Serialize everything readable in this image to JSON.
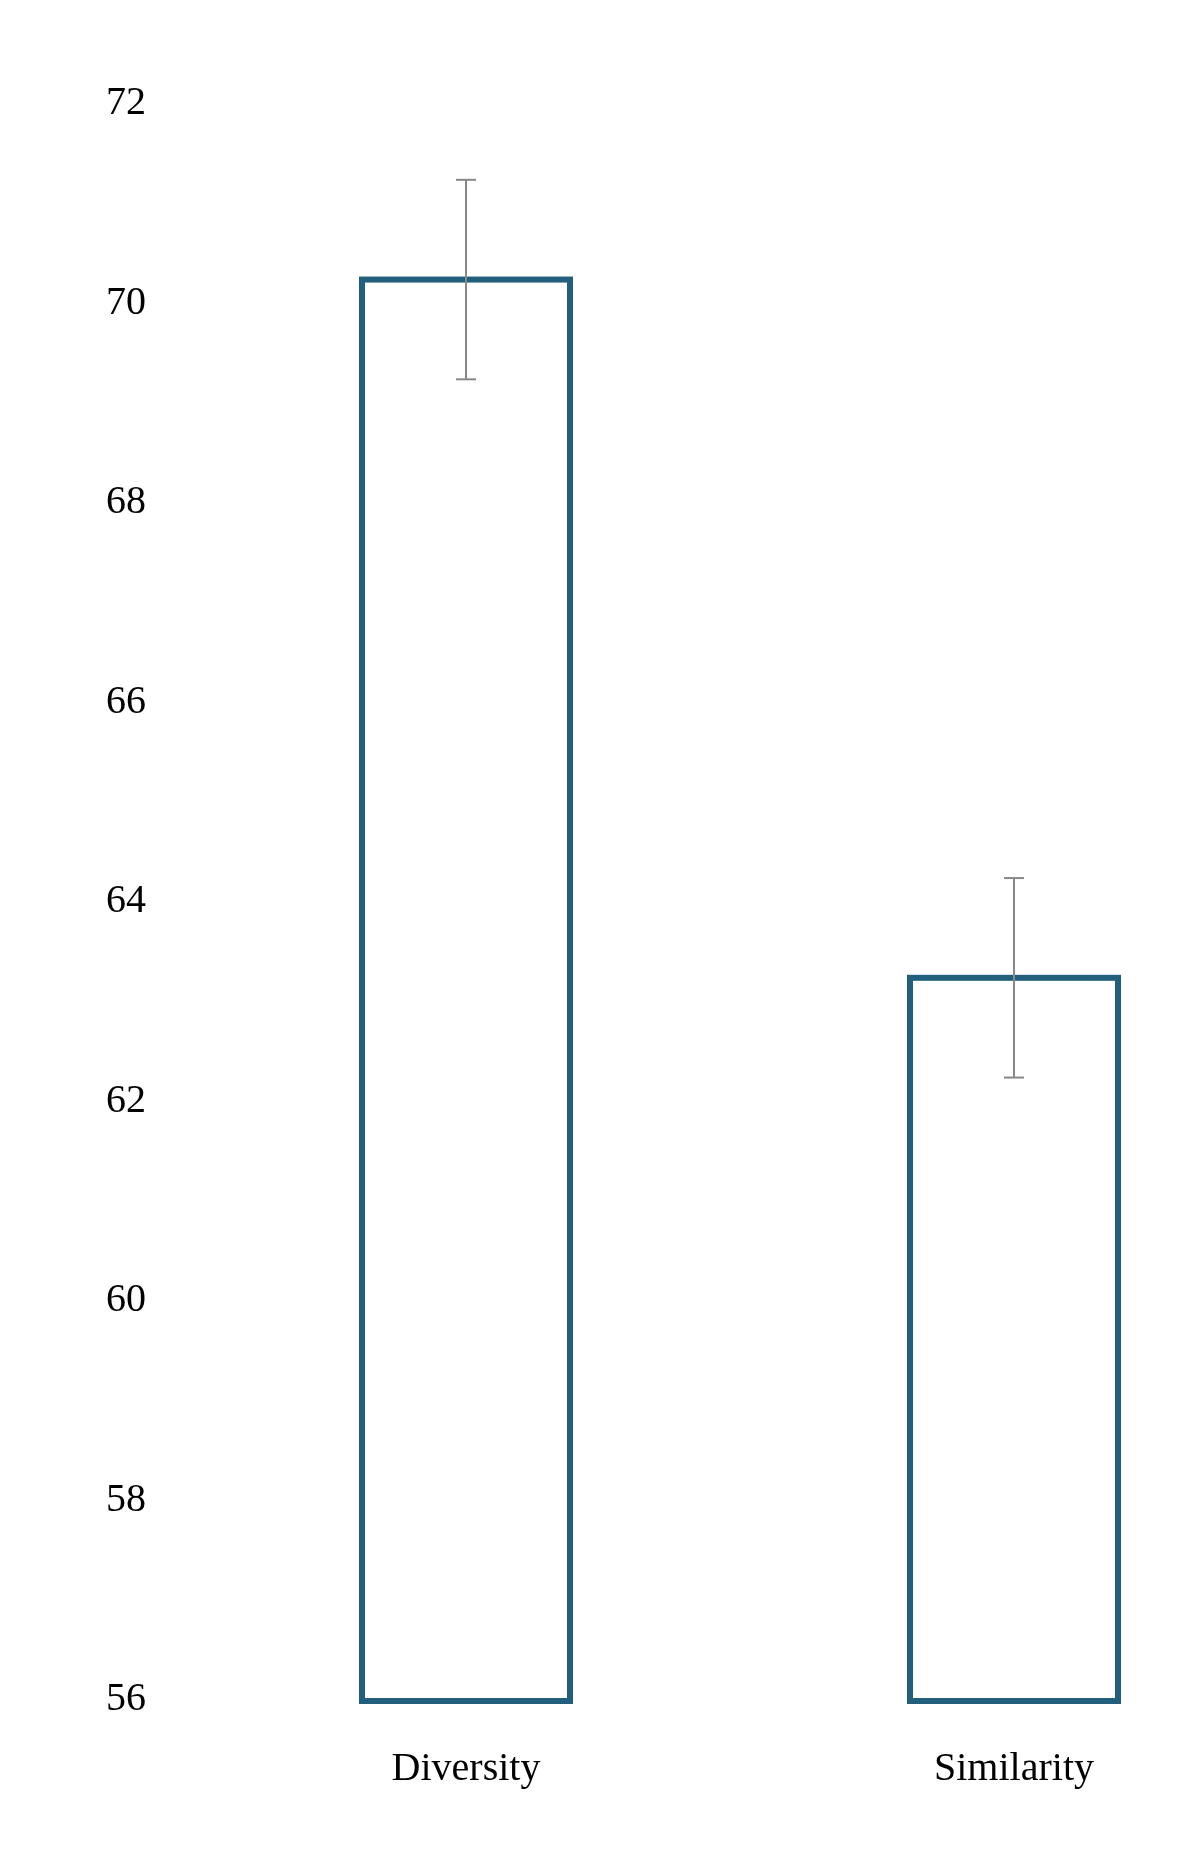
{
  "chart_data": {
    "type": "bar",
    "categories": [
      "Diversity",
      "Similarity"
    ],
    "values": [
      70.25,
      63.25
    ],
    "errors": [
      1.0,
      1.0
    ],
    "color": "#215f7d",
    "ylim": [
      56,
      72
    ],
    "yticks": [
      56,
      58,
      60,
      62,
      64,
      66,
      68,
      70,
      72
    ],
    "grid": false
  }
}
